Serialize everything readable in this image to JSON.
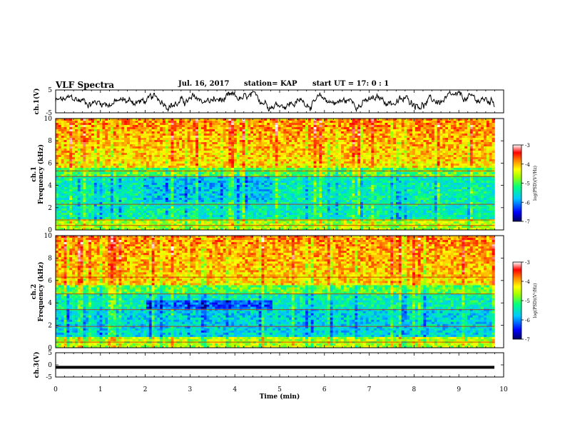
{
  "header": {
    "title": "VLF Spectra",
    "date": "Jul. 16, 2017",
    "station": "station= KAP",
    "start_ut": "start UT = 17: 0 : 1"
  },
  "chart_data": [
    {
      "type": "line",
      "panel": "ch1-waveform",
      "ylabel": "ch.1(V)",
      "ylim": [
        -5,
        5
      ],
      "yticks": [
        "5",
        "-5"
      ],
      "x_range_min": [
        0,
        9.8
      ],
      "description_series": "noisy waveform centered near 0 V"
    },
    {
      "type": "heatmap",
      "panel": "ch1-spectrogram",
      "ylabel": "ch.1 Frequency (kHz)",
      "ylim": [
        0,
        10
      ],
      "yticks": [
        "0",
        "2",
        "4",
        "6",
        "8",
        "10"
      ],
      "colorbar": {
        "label": "log(PSD)(V²/Hz)",
        "ticks": [
          "-3",
          "-4",
          "-5",
          "-6",
          "-7"
        ],
        "range": [
          -7,
          -3
        ]
      }
    },
    {
      "type": "heatmap",
      "panel": "ch2-spectrogram",
      "ylabel": "ch.2 Frequency (kHz)",
      "ylim": [
        0,
        10
      ],
      "yticks": [
        "0",
        "2",
        "4",
        "6",
        "8",
        "10"
      ],
      "colorbar": {
        "label": "log(PSD)(V²/Hz)",
        "ticks": [
          "-3",
          "-4",
          "-5",
          "-6",
          "-7"
        ],
        "range": [
          -7,
          -3
        ]
      }
    },
    {
      "type": "line",
      "panel": "ch3-waveform",
      "ylabel": "ch.3(V)",
      "ylim": [
        -5,
        5
      ],
      "yticks": [
        "5",
        "0",
        "-5"
      ],
      "values_constant": -1
    }
  ],
  "xaxis": {
    "label": "Time (min)",
    "ticks": [
      "0",
      "1",
      "2",
      "3",
      "4",
      "5",
      "6",
      "7",
      "8",
      "9",
      "10"
    ],
    "range": [
      0,
      10
    ]
  },
  "colors": {
    "waveform": "#000000",
    "colormap": [
      "#000080",
      "#0000ff",
      "#00c8ff",
      "#00ff80",
      "#80ff00",
      "#ffff00",
      "#ff8000",
      "#ff0000",
      "#ffffff"
    ]
  }
}
